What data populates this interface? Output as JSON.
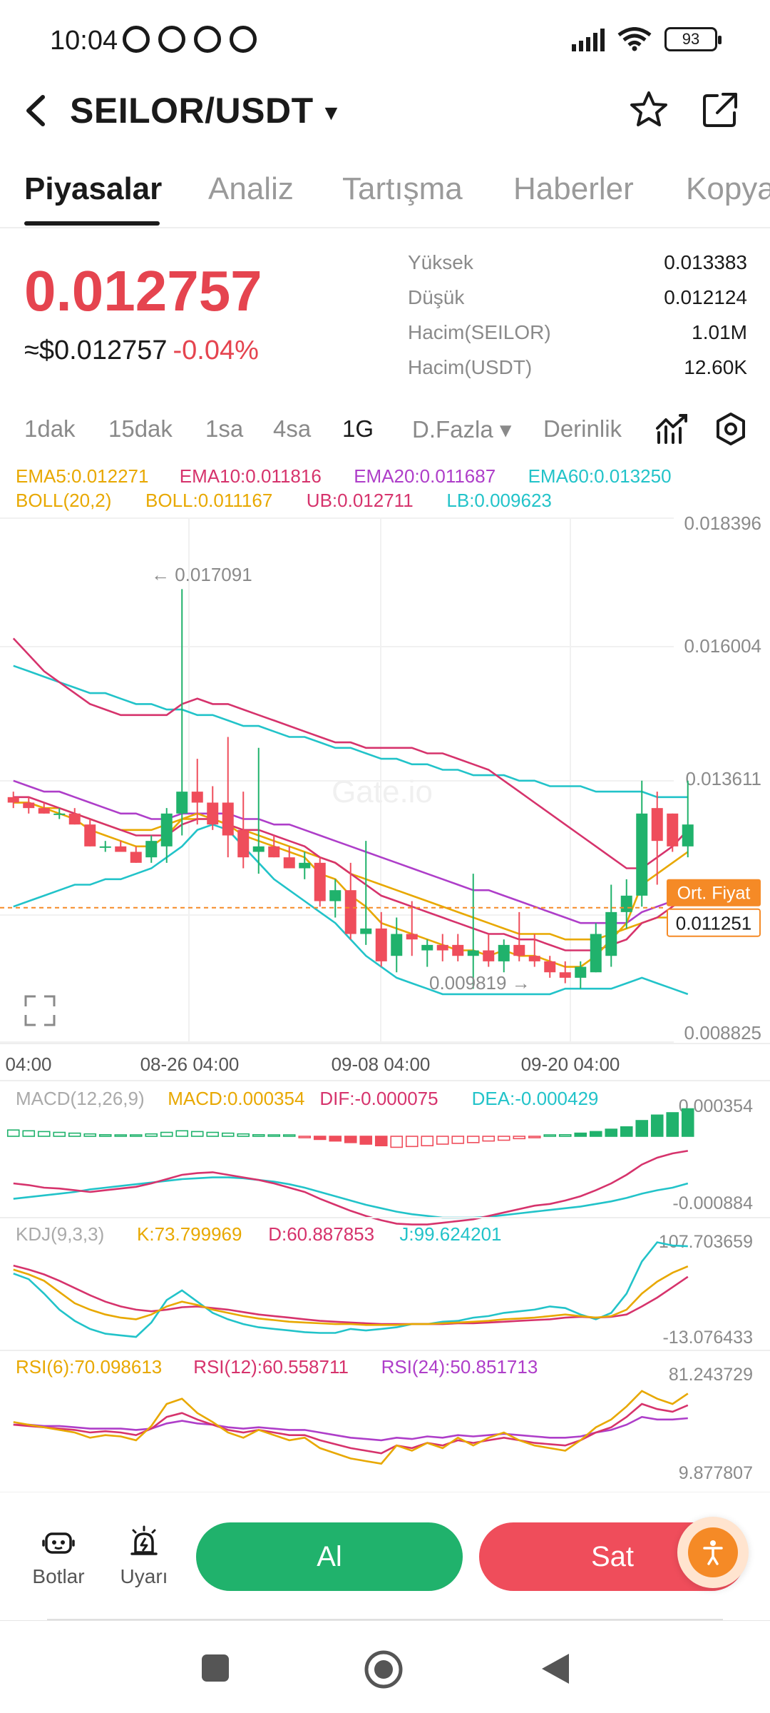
{
  "status_bar": {
    "time": "10:04",
    "battery": "93"
  },
  "header": {
    "pair": "SEILOR/USDT"
  },
  "tabs": [
    {
      "label": "Piyasalar",
      "active": true
    },
    {
      "label": "Analiz"
    },
    {
      "label": "Tartışma"
    },
    {
      "label": "Haberler"
    },
    {
      "label": "Kopya"
    }
  ],
  "ticker": {
    "price": "0.012757",
    "usd_price": "≈$0.012757",
    "change": "-0.04%",
    "stats": [
      {
        "label": "Yüksek",
        "value": "0.013383"
      },
      {
        "label": "Düşük",
        "value": "0.012124"
      },
      {
        "label": "Hacim(SEILOR)",
        "value": "1.01M"
      },
      {
        "label": "Hacim(USDT)",
        "value": "12.60K"
      }
    ]
  },
  "timeframes": [
    {
      "label": "1dak"
    },
    {
      "label": "15dak"
    },
    {
      "label": "1sa"
    },
    {
      "label": "4sa"
    },
    {
      "label": "1G",
      "active": true
    },
    {
      "label": "D.Fazla ▾"
    },
    {
      "label": "Derinlik"
    }
  ],
  "chart_data": {
    "type": "candlestick",
    "watermark": "Gate.io",
    "indicators": {
      "ema_line": [
        {
          "text": "EMA5:0.012271",
          "color": "#e8a800"
        },
        {
          "text": "EMA10:0.011816",
          "color": "#d6336c"
        },
        {
          "text": "EMA20:0.011687",
          "color": "#ae3ec9"
        },
        {
          "text": "EMA60:0.013250",
          "color": "#22c3c9"
        }
      ],
      "boll_line": [
        {
          "text": "BOLL(20,2)",
          "color": "#e8a800"
        },
        {
          "text": "BOLL:0.011167",
          "color": "#e8a800"
        },
        {
          "text": "UB:0.012711",
          "color": "#d6336c"
        },
        {
          "text": "LB:0.009623",
          "color": "#22c3c9"
        }
      ]
    },
    "y_ticks": [
      "0.018396",
      "0.016004",
      "0.013611",
      "0.008825"
    ],
    "ylim": [
      0.008825,
      0.018396
    ],
    "x_ticks": [
      "04:00",
      "08-26 04:00",
      "09-08 04:00",
      "09-20 04:00"
    ],
    "annotations": {
      "high": "← 0.017091",
      "low": "0.009819 →"
    },
    "avg_price": {
      "label": "Ort. Fiyat",
      "value": "0.011251"
    },
    "candles": [
      [
        0.0133,
        0.0134,
        0.0131,
        0.0132
      ],
      [
        0.0132,
        0.0133,
        0.013,
        0.0131
      ],
      [
        0.0131,
        0.0132,
        0.013,
        0.013
      ],
      [
        0.013,
        0.0131,
        0.0129,
        0.013
      ],
      [
        0.013,
        0.0131,
        0.0128,
        0.0128
      ],
      [
        0.0128,
        0.0129,
        0.0124,
        0.0124
      ],
      [
        0.0124,
        0.0125,
        0.0123,
        0.0124
      ],
      [
        0.0124,
        0.0125,
        0.0123,
        0.0123
      ],
      [
        0.0123,
        0.0124,
        0.0121,
        0.0121
      ],
      [
        0.0122,
        0.0126,
        0.0121,
        0.0125
      ],
      [
        0.0124,
        0.0131,
        0.0121,
        0.013
      ],
      [
        0.013,
        0.0171,
        0.0126,
        0.0134
      ],
      [
        0.0134,
        0.014,
        0.0128,
        0.0132
      ],
      [
        0.0132,
        0.0135,
        0.0127,
        0.0128
      ],
      [
        0.0132,
        0.0144,
        0.0122,
        0.0126
      ],
      [
        0.0127,
        0.0134,
        0.012,
        0.0122
      ],
      [
        0.0123,
        0.0142,
        0.0119,
        0.0124
      ],
      [
        0.0124,
        0.0126,
        0.0122,
        0.0122
      ],
      [
        0.0122,
        0.0124,
        0.012,
        0.012
      ],
      [
        0.012,
        0.0123,
        0.0118,
        0.0121
      ],
      [
        0.0121,
        0.0122,
        0.0113,
        0.0114
      ],
      [
        0.0114,
        0.0118,
        0.0111,
        0.0116
      ],
      [
        0.0116,
        0.0121,
        0.0107,
        0.0108
      ],
      [
        0.0108,
        0.0125,
        0.0106,
        0.0109
      ],
      [
        0.0109,
        0.0112,
        0.0102,
        0.0103
      ],
      [
        0.0104,
        0.0111,
        0.0101,
        0.0108
      ],
      [
        0.0108,
        0.0114,
        0.0104,
        0.0107
      ],
      [
        0.0105,
        0.0107,
        0.0102,
        0.0106
      ],
      [
        0.0106,
        0.0108,
        0.0103,
        0.0105
      ],
      [
        0.0106,
        0.0108,
        0.0103,
        0.0104
      ],
      [
        0.0104,
        0.0119,
        0.0098,
        0.0105
      ],
      [
        0.0105,
        0.0108,
        0.0102,
        0.0103
      ],
      [
        0.0103,
        0.0107,
        0.0101,
        0.0106
      ],
      [
        0.0106,
        0.0112,
        0.0103,
        0.0104
      ],
      [
        0.0104,
        0.0108,
        0.0102,
        0.0103
      ],
      [
        0.0103,
        0.0104,
        0.01,
        0.0101
      ],
      [
        0.0101,
        0.0103,
        0.0099,
        0.01
      ],
      [
        0.01,
        0.0103,
        0.0098,
        0.0102
      ],
      [
        0.0101,
        0.011,
        0.0101,
        0.0108
      ],
      [
        0.0104,
        0.0117,
        0.0102,
        0.0112
      ],
      [
        0.0112,
        0.0118,
        0.0109,
        0.0115
      ],
      [
        0.0115,
        0.0136,
        0.0113,
        0.013
      ],
      [
        0.0131,
        0.0134,
        0.0117,
        0.0125
      ],
      [
        0.013,
        0.013,
        0.0123,
        0.0124
      ],
      [
        0.0124,
        0.0136,
        0.0122,
        0.0128
      ]
    ],
    "ema60": [
      0.0157,
      0.0156,
      0.0155,
      0.0154,
      0.0153,
      0.0152,
      0.0152,
      0.0151,
      0.015,
      0.015,
      0.0149,
      0.0149,
      0.0148,
      0.0148,
      0.0147,
      0.0146,
      0.0146,
      0.0145,
      0.0144,
      0.0144,
      0.0143,
      0.0142,
      0.0142,
      0.0141,
      0.014,
      0.014,
      0.0139,
      0.0139,
      0.0138,
      0.0138,
      0.0137,
      0.0137,
      0.0137,
      0.0136,
      0.0136,
      0.0135,
      0.0135,
      0.0135,
      0.0134,
      0.0134,
      0.0134,
      0.0134,
      0.0133,
      0.0133,
      0.0133
    ],
    "ub": [
      0.0162,
      0.0159,
      0.0156,
      0.0154,
      0.0152,
      0.015,
      0.0149,
      0.0148,
      0.0148,
      0.0148,
      0.0148,
      0.015,
      0.0151,
      0.015,
      0.015,
      0.0149,
      0.0148,
      0.0147,
      0.0146,
      0.0145,
      0.0144,
      0.0143,
      0.0143,
      0.0142,
      0.0142,
      0.0142,
      0.0142,
      0.0141,
      0.0141,
      0.014,
      0.0139,
      0.0138,
      0.0136,
      0.0134,
      0.0132,
      0.013,
      0.0128,
      0.0126,
      0.0124,
      0.0122,
      0.012,
      0.012,
      0.0122,
      0.0124,
      0.0127
    ],
    "boll": [
      0.0132,
      0.0132,
      0.0131,
      0.0131,
      0.013,
      0.0129,
      0.0128,
      0.0127,
      0.0127,
      0.0127,
      0.0128,
      0.0129,
      0.0129,
      0.0129,
      0.0128,
      0.0127,
      0.0126,
      0.0125,
      0.0124,
      0.0123,
      0.0122,
      0.0121,
      0.0119,
      0.0118,
      0.0117,
      0.0116,
      0.0115,
      0.0114,
      0.0113,
      0.0112,
      0.0111,
      0.011,
      0.0109,
      0.0108,
      0.0108,
      0.0108,
      0.0107,
      0.0107,
      0.0107,
      0.0108,
      0.0109,
      0.011,
      0.0111,
      0.0111,
      0.0112
    ],
    "lb": [
      0.0113,
      0.0114,
      0.0115,
      0.0116,
      0.0117,
      0.0117,
      0.0118,
      0.0118,
      0.0119,
      0.012,
      0.0122,
      0.0124,
      0.0127,
      0.0128,
      0.0127,
      0.0124,
      0.0121,
      0.0118,
      0.0116,
      0.0114,
      0.0112,
      0.011,
      0.0107,
      0.0104,
      0.0102,
      0.01,
      0.0099,
      0.0098,
      0.0097,
      0.0097,
      0.0097,
      0.0097,
      0.0097,
      0.0097,
      0.0097,
      0.0097,
      0.0098,
      0.0098,
      0.0098,
      0.0098,
      0.0099,
      0.01,
      0.0099,
      0.0098,
      0.0097
    ],
    "ema_a": [
      0.0132,
      0.0132,
      0.0131,
      0.013,
      0.0129,
      0.0127,
      0.0126,
      0.0125,
      0.0124,
      0.0124,
      0.0126,
      0.0129,
      0.013,
      0.0129,
      0.0128,
      0.0126,
      0.0125,
      0.0124,
      0.0123,
      0.0122,
      0.0119,
      0.0118,
      0.0115,
      0.0113,
      0.011,
      0.0109,
      0.0108,
      0.0107,
      0.0106,
      0.0105,
      0.0105,
      0.0104,
      0.0105,
      0.0104,
      0.0104,
      0.0103,
      0.0102,
      0.0102,
      0.0104,
      0.0107,
      0.011,
      0.0117,
      0.0119,
      0.0121,
      0.0123
    ],
    "ema_b": [
      0.0133,
      0.0133,
      0.0132,
      0.0131,
      0.013,
      0.0129,
      0.0128,
      0.0127,
      0.0126,
      0.0126,
      0.0126,
      0.0128,
      0.0129,
      0.0129,
      0.0128,
      0.0127,
      0.0127,
      0.0126,
      0.0125,
      0.0124,
      0.0122,
      0.0121,
      0.0119,
      0.0117,
      0.0115,
      0.0114,
      0.0113,
      0.0112,
      0.0111,
      0.011,
      0.0109,
      0.0108,
      0.0108,
      0.0107,
      0.0107,
      0.0106,
      0.0105,
      0.0105,
      0.0105,
      0.0106,
      0.0107,
      0.011,
      0.0111,
      0.0113,
      0.0115
    ],
    "ema_c": [
      0.0136,
      0.0135,
      0.0134,
      0.0134,
      0.0133,
      0.0132,
      0.0131,
      0.013,
      0.013,
      0.0129,
      0.0129,
      0.013,
      0.013,
      0.013,
      0.013,
      0.0129,
      0.0129,
      0.0128,
      0.0128,
      0.0127,
      0.0126,
      0.0125,
      0.0124,
      0.0123,
      0.0122,
      0.0121,
      0.012,
      0.0119,
      0.0118,
      0.0117,
      0.0116,
      0.0116,
      0.0115,
      0.0114,
      0.0113,
      0.0112,
      0.0111,
      0.011,
      0.011,
      0.011,
      0.011,
      0.0112,
      0.0113,
      0.0114,
      0.0116
    ],
    "macd": {
      "legend": [
        {
          "text": "MACD(12,26,9)",
          "color": "#aaaaaa"
        },
        {
          "text": "MACD:0.000354",
          "color": "#e8a800"
        },
        {
          "text": "DIF:-0.000075",
          "color": "#d6336c"
        },
        {
          "text": "DEA:-0.000429",
          "color": "#22c3c9"
        }
      ],
      "ticks": [
        "0.000354",
        "-0.000884"
      ],
      "hist": [
        8e-05,
        7e-05,
        6e-05,
        5e-05,
        4e-05,
        3e-05,
        2e-05,
        1e-05,
        1e-05,
        3e-05,
        5e-05,
        7e-05,
        6e-05,
        5e-05,
        4e-05,
        3e-05,
        2e-05,
        1e-05,
        1e-05,
        -1e-05,
        -4e-05,
        -6e-05,
        -8e-05,
        -0.0001,
        -0.00012,
        -0.00014,
        -0.00013,
        -0.00012,
        -0.0001,
        -9e-05,
        -8e-05,
        -6e-05,
        -5e-05,
        -3e-05,
        -1e-05,
        1e-05,
        2e-05,
        4e-05,
        6e-05,
        9e-05,
        0.00012,
        0.0002,
        0.00027,
        0.0003,
        0.00035
      ],
      "dif": [
        -0.0004,
        -0.00042,
        -0.00045,
        -0.00046,
        -0.00048,
        -0.0005,
        -0.00048,
        -0.00046,
        -0.00044,
        -0.0004,
        -0.00035,
        -0.0003,
        -0.00028,
        -0.00027,
        -0.0003,
        -0.00033,
        -0.00036,
        -0.0004,
        -0.00045,
        -0.0005,
        -0.00058,
        -0.00065,
        -0.00072,
        -0.00078,
        -0.00083,
        -0.00087,
        -0.00088,
        -0.00088,
        -0.00086,
        -0.00084,
        -0.00082,
        -0.00078,
        -0.00074,
        -0.0007,
        -0.00066,
        -0.00064,
        -0.0006,
        -0.00055,
        -0.00048,
        -0.0004,
        -0.0003,
        -0.00018,
        -0.0001,
        -5e-05,
        -2e-05
      ],
      "dea": [
        -0.00058,
        -0.00056,
        -0.00054,
        -0.00052,
        -0.0005,
        -0.00047,
        -0.00045,
        -0.00043,
        -0.00041,
        -0.00039,
        -0.00037,
        -0.00035,
        -0.00034,
        -0.00033,
        -0.00033,
        -0.00034,
        -0.00036,
        -0.00038,
        -0.00041,
        -0.00045,
        -0.0005,
        -0.00055,
        -0.0006,
        -0.00065,
        -0.00069,
        -0.00073,
        -0.00076,
        -0.00078,
        -0.0008,
        -0.0008,
        -0.0008,
        -0.00079,
        -0.00077,
        -0.00075,
        -0.00073,
        -0.00071,
        -0.00069,
        -0.00067,
        -0.00064,
        -0.00061,
        -0.00057,
        -0.00052,
        -0.00048,
        -0.00045,
        -0.0004
      ]
    },
    "kdj": {
      "legend": [
        {
          "text": "KDJ(9,3,3)",
          "color": "#aaaaaa"
        },
        {
          "text": "K:73.799969",
          "color": "#e8a800"
        },
        {
          "text": "D:60.887853",
          "color": "#d6336c"
        },
        {
          "text": "J:99.624201",
          "color": "#22c3c9"
        }
      ],
      "ticks": [
        "107.703659",
        "-13.076433"
      ],
      "k": [
        70,
        64,
        56,
        42,
        28,
        20,
        14,
        10,
        8,
        14,
        24,
        30,
        26,
        20,
        16,
        12,
        9,
        7,
        5,
        4,
        3,
        2,
        2,
        1,
        1,
        1,
        2,
        2,
        3,
        4,
        5,
        6,
        8,
        9,
        10,
        12,
        14,
        12,
        10,
        12,
        20,
        40,
        55,
        66,
        74
      ],
      "d": [
        75,
        70,
        64,
        56,
        47,
        38,
        30,
        24,
        20,
        18,
        20,
        23,
        24,
        22,
        20,
        17,
        14,
        12,
        10,
        8,
        6,
        5,
        4,
        3,
        2,
        2,
        2,
        2,
        2,
        3,
        3,
        4,
        5,
        6,
        7,
        8,
        10,
        11,
        10,
        11,
        14,
        24,
        35,
        48,
        61
      ],
      "j": [
        65,
        58,
        40,
        20,
        6,
        -4,
        -10,
        -12,
        -14,
        4,
        32,
        44,
        30,
        16,
        8,
        2,
        -2,
        -4,
        -6,
        -8,
        -9,
        -9,
        -4,
        -6,
        -4,
        -2,
        2,
        2,
        5,
        6,
        10,
        12,
        16,
        18,
        20,
        24,
        22,
        14,
        8,
        16,
        40,
        80,
        104,
        100,
        99
      ]
    },
    "rsi": {
      "legend": [
        {
          "text": "RSI(6):70.098613",
          "color": "#e8a800"
        },
        {
          "text": "RSI(12):60.558711",
          "color": "#d6336c"
        },
        {
          "text": "RSI(24):50.851713",
          "color": "#ae3ec9"
        }
      ],
      "ticks": [
        "81.243729",
        "9.877807"
      ],
      "r6": [
        48,
        46,
        44,
        42,
        40,
        36,
        38,
        37,
        34,
        45,
        62,
        66,
        55,
        48,
        40,
        36,
        42,
        38,
        34,
        36,
        28,
        24,
        20,
        18,
        16,
        30,
        26,
        32,
        28,
        36,
        30,
        36,
        40,
        34,
        30,
        28,
        26,
        34,
        44,
        50,
        60,
        72,
        66,
        62,
        70
      ],
      "r12": [
        46,
        45,
        44,
        43,
        42,
        40,
        41,
        40,
        38,
        43,
        52,
        55,
        50,
        46,
        42,
        40,
        42,
        40,
        38,
        38,
        34,
        31,
        28,
        26,
        24,
        30,
        28,
        32,
        30,
        34,
        32,
        34,
        36,
        34,
        32,
        31,
        30,
        34,
        40,
        44,
        52,
        62,
        58,
        56,
        61
      ],
      "r24": [
        46,
        46,
        45,
        45,
        44,
        43,
        43,
        43,
        42,
        43,
        47,
        49,
        47,
        46,
        44,
        43,
        44,
        43,
        42,
        42,
        40,
        38,
        36,
        35,
        34,
        36,
        35,
        37,
        36,
        38,
        37,
        38,
        39,
        38,
        37,
        36,
        36,
        37,
        40,
        42,
        46,
        52,
        50,
        50,
        51
      ]
    }
  },
  "actions": {
    "bots_label": "Botlar",
    "alerts_label": "Uyarı",
    "buy_label": "Al",
    "sell_label": "Sat"
  }
}
